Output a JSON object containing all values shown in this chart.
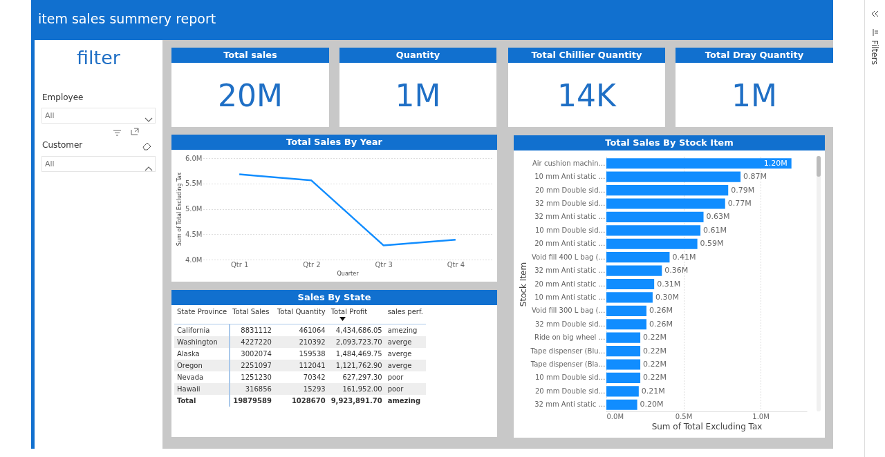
{
  "chart_data": [
    {
      "type": "other",
      "title": "item sales summery report",
      "annotations": [
        "filter",
        "Employee",
        "All",
        "Customer",
        "All",
        "Filters"
      ]
    },
    {
      "type": "other",
      "title": "Total sales",
      "annotations": [
        "20M"
      ]
    },
    {
      "type": "other",
      "title": "Quantity",
      "annotations": [
        "1M"
      ]
    },
    {
      "type": "other",
      "title": "Total Chillier Quantity",
      "annotations": [
        "14K"
      ]
    },
    {
      "type": "other",
      "title": "Total Dray Quantity",
      "annotations": [
        "1M"
      ]
    },
    {
      "type": "line",
      "title": "Total Sales By Year",
      "xlabel": "Quarter",
      "ylabel": "Sum of Total Excluding Tax",
      "categories": [
        "Qtr 1",
        "Qtr 2",
        "Qtr 3",
        "Qtr 4"
      ],
      "values": [
        5.68,
        5.56,
        4.28,
        4.39
      ],
      "color": "#118dff",
      "ylim": [
        4,
        6
      ],
      "yticks": [
        {
          "value": 4,
          "label": "4.0M"
        },
        {
          "value": 4.5,
          "label": "4.5M"
        },
        {
          "value": 5,
          "label": "5.0M"
        },
        {
          "value": 5.5,
          "label": "5.5M"
        },
        {
          "value": 6,
          "label": "6.0M"
        }
      ],
      "grid": "y"
    },
    {
      "type": "other",
      "title": "Sales By State",
      "annotations": [
        "State Province",
        "Total Sales",
        "Total Quantity",
        "Total Profit",
        "sales perf.",
        "California",
        "8831112",
        "461064",
        "4,434,686.05",
        "amezing",
        "Washington",
        "4227220",
        "210392",
        "2,093,723.70",
        "averge",
        "Alaska",
        "3002074",
        "159538",
        "1,484,469.75",
        "averge",
        "Oregon",
        "2251097",
        "112041",
        "1,121,762.90",
        "averge",
        "Nevada",
        "1251230",
        "70342",
        "627,297.30",
        "poor",
        "Hawaii",
        "316856",
        "15293",
        "161,952.00",
        "poor",
        "Total",
        "19879589",
        "1028670",
        "9,923,891.70",
        "amezing"
      ]
    },
    {
      "type": "bar",
      "orientation": "horizontal",
      "title": "Total Sales By Stock Item",
      "xlabel": "Sum of Total Excluding Tax",
      "ylabel": "Stock Item",
      "categories": [
        "Air cushion machin…",
        "10 mm Anti static …",
        "20 mm Double sid…",
        "32 mm Double sid…",
        "32 mm Anti static …",
        "10 mm Double sid…",
        "20 mm Anti static …",
        "Void fill 400 L bag (…",
        "32 mm Anti static …",
        "20 mm Anti static …",
        "10 mm Anti static …",
        "Void fill 300 L bag (…",
        "32 mm Double sid…",
        "Ride on big wheel …",
        "Tape dispenser (Blu…",
        "Tape dispenser (Bla…",
        "10 mm Double sid…",
        "20 mm Double sid…",
        "32 mm Anti static …"
      ],
      "values": [
        1.2,
        0.87,
        0.79,
        0.77,
        0.63,
        0.61,
        0.59,
        0.41,
        0.36,
        0.31,
        0.3,
        0.26,
        0.26,
        0.22,
        0.22,
        0.22,
        0.22,
        0.21,
        0.2
      ],
      "value_labels": [
        "1.20M",
        "0.87M",
        "0.79M",
        "0.77M",
        "0.63M",
        "0.61M",
        "0.59M",
        "0.41M",
        "0.36M",
        "0.31M",
        "0.30M",
        "0.26M",
        "0.26M",
        "0.22M",
        "0.22M",
        "0.22M",
        "0.22M",
        "0.21M",
        "0.20M"
      ],
      "color": "#118dff",
      "xlim": [
        0,
        1.3
      ],
      "xticks": [
        {
          "value": 0,
          "label": "0.0M"
        },
        {
          "value": 0.5,
          "label": "0.5M"
        },
        {
          "value": 1,
          "label": "1.0M"
        }
      ],
      "grid": "x"
    }
  ]
}
